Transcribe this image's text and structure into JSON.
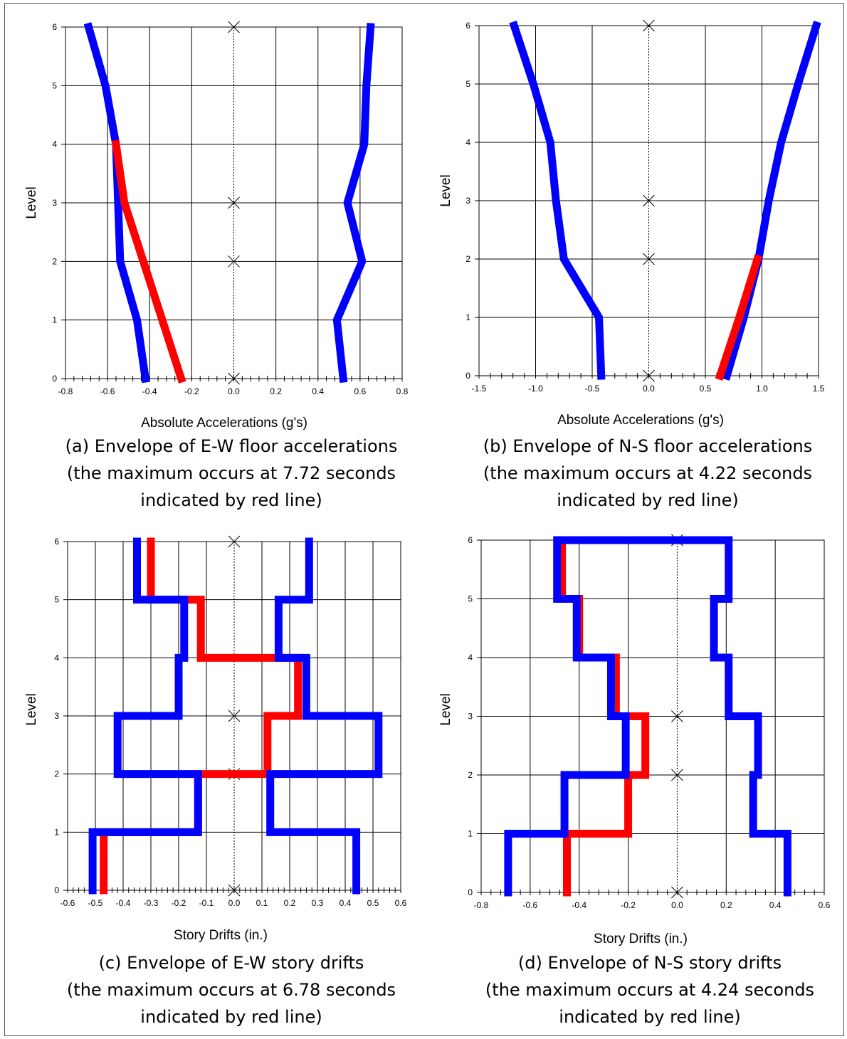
{
  "figure": {
    "panels": [
      {
        "caption": [
          "(a) Envelope of E-W floor accelerations",
          "(the maximum occurs at 7.72 seconds",
          "indicated by red line)"
        ]
      },
      {
        "caption": [
          "(b) Envelope of N-S floor accelerations",
          "(the maximum occurs at 4.22 seconds",
          "indicated by red line)"
        ]
      },
      {
        "caption": [
          "(c) Envelope of E-W story drifts",
          "(the maximum occurs at 6.78 seconds",
          "indicated by red line)"
        ]
      },
      {
        "caption": [
          "(d) Envelope of N-S story drifts",
          "(the maximum occurs at 4.24 seconds",
          "indicated by red line)"
        ]
      }
    ]
  },
  "chart_data": [
    {
      "type": "line",
      "xlabel": "Absolute Accelerations (g's)",
      "ylabel": "Level",
      "xlim": [
        -0.8,
        0.8
      ],
      "ylim": [
        0,
        6
      ],
      "xticks": [
        "-0.8",
        "-0.6",
        "-0.4",
        "-0.2",
        "0.0",
        "0.2",
        "0.4",
        "0.6",
        "0.8"
      ],
      "yticks": [
        "0",
        "1",
        "2",
        "3",
        "4",
        "5",
        "6"
      ],
      "grid": true,
      "colors": {
        "envelope": "#0000ff",
        "max": "#ff0000"
      },
      "series": [
        {
          "x": [
            -0.42,
            -0.46,
            -0.54,
            -0.55,
            -0.56,
            -0.61,
            -0.69
          ],
          "y": [
            0,
            1,
            2,
            3,
            4,
            5,
            6
          ]
        },
        {
          "x": [
            0.52,
            0.49,
            0.61,
            0.54,
            0.62,
            0.63,
            0.65
          ],
          "y": [
            0,
            1,
            2,
            3,
            4,
            5,
            6
          ]
        },
        {
          "x": [
            -0.25,
            -0.34,
            -0.43,
            -0.52,
            -0.56
          ],
          "y": [
            0,
            1,
            2,
            3,
            4
          ]
        }
      ]
    },
    {
      "type": "line",
      "xlabel": "Absolute Accelerations (g's)",
      "ylabel": "Level",
      "xlim": [
        -1.5,
        1.5
      ],
      "ylim": [
        0,
        6
      ],
      "xticks": [
        "-1.5",
        "-1.0",
        "-0.5",
        "0.0",
        "0.5",
        "1.0",
        "1.5"
      ],
      "yticks": [
        "0",
        "1",
        "2",
        "3",
        "4",
        "5",
        "6"
      ],
      "grid": true,
      "colors": {
        "envelope": "#0000ff",
        "max": "#ff0000"
      },
      "series": [
        {
          "x": [
            -0.42,
            -0.44,
            -0.75,
            -0.82,
            -0.87,
            -1.02,
            -1.19
          ],
          "y": [
            0,
            1,
            2,
            3,
            4,
            5,
            6
          ]
        },
        {
          "x": [
            0.69,
            0.84,
            0.97,
            1.06,
            1.17,
            1.32,
            1.48
          ],
          "y": [
            0,
            1,
            2,
            3,
            4,
            5,
            6
          ]
        },
        {
          "x": [
            0.63,
            0.8,
            0.96
          ],
          "y": [
            0,
            1,
            2
          ]
        }
      ]
    },
    {
      "type": "line",
      "xlabel": "Story Drifts (in.)",
      "ylabel": "Level",
      "xlim": [
        -0.6,
        0.6
      ],
      "ylim": [
        0,
        6
      ],
      "xticks": [
        "-0.6",
        "-0.5",
        "-0.4",
        "-0.3",
        "-0.2",
        "-0.1",
        "0.0",
        "0.1",
        "0.2",
        "0.3",
        "0.4",
        "0.5",
        "0.6"
      ],
      "yticks": [
        "0",
        "1",
        "2",
        "3",
        "4",
        "5",
        "6"
      ],
      "grid": true,
      "colors": {
        "envelope": "#0000ff",
        "max": "#ff0000"
      },
      "series": [
        {
          "x": [
            -0.51,
            -0.51,
            -0.13,
            -0.13,
            -0.42,
            -0.42,
            -0.2,
            -0.2,
            -0.18,
            -0.18,
            -0.35,
            -0.35
          ],
          "y": [
            0,
            1,
            1,
            2,
            2,
            3,
            3,
            4,
            4,
            5,
            5,
            6
          ]
        },
        {
          "x": [
            0.44,
            0.44,
            0.13,
            0.13,
            0.52,
            0.52,
            0.26,
            0.26,
            0.16,
            0.16,
            0.27,
            0.27
          ],
          "y": [
            0,
            1,
            1,
            2,
            2,
            3,
            3,
            4,
            4,
            5,
            5,
            6
          ]
        },
        {
          "x": [
            -0.47,
            -0.47,
            -0.13,
            -0.13,
            -0.03,
            -0.03,
            0.12,
            0.12,
            0.23,
            0.23,
            -0.12,
            -0.12,
            -0.3,
            -0.3
          ],
          "y": [
            0,
            1,
            1,
            2,
            2,
            2,
            2,
            3,
            3,
            4,
            4,
            5,
            5,
            6
          ]
        }
      ]
    },
    {
      "type": "line",
      "xlabel": "Story Drifts (in.)",
      "ylabel": "Level",
      "xlim": [
        -0.8,
        0.6
      ],
      "ylim": [
        0,
        6
      ],
      "xticks": [
        "-0.8",
        "-0.6",
        "-0.4",
        "-0.2",
        "0.0",
        "0.2",
        "0.4",
        "0.6"
      ],
      "yticks": [
        "0",
        "1",
        "2",
        "3",
        "4",
        "5",
        "6"
      ],
      "grid": true,
      "colors": {
        "envelope": "#0000ff",
        "max": "#ff0000"
      },
      "series": [
        {
          "x": [
            -0.69,
            -0.69,
            -0.46,
            -0.46,
            -0.21,
            -0.21,
            -0.27,
            -0.27,
            -0.41,
            -0.41,
            -0.49,
            -0.49,
            0.21,
            0.21,
            0.15,
            0.15,
            0.21,
            0.21,
            0.33,
            0.33,
            0.31,
            0.31,
            0.45,
            0.45
          ],
          "y": [
            0,
            1,
            1,
            2,
            2,
            3,
            3,
            4,
            4,
            5,
            5,
            6,
            6,
            5,
            5,
            4,
            4,
            3,
            3,
            2,
            2,
            1,
            1,
            0
          ]
        },
        {
          "x": [
            -0.45,
            -0.45,
            -0.2,
            -0.2,
            -0.13,
            -0.13,
            -0.25,
            -0.25,
            -0.4,
            -0.4,
            -0.47,
            -0.47
          ],
          "y": [
            0,
            1,
            1,
            2,
            2,
            3,
            3,
            4,
            4,
            5,
            5,
            6
          ]
        }
      ]
    }
  ]
}
